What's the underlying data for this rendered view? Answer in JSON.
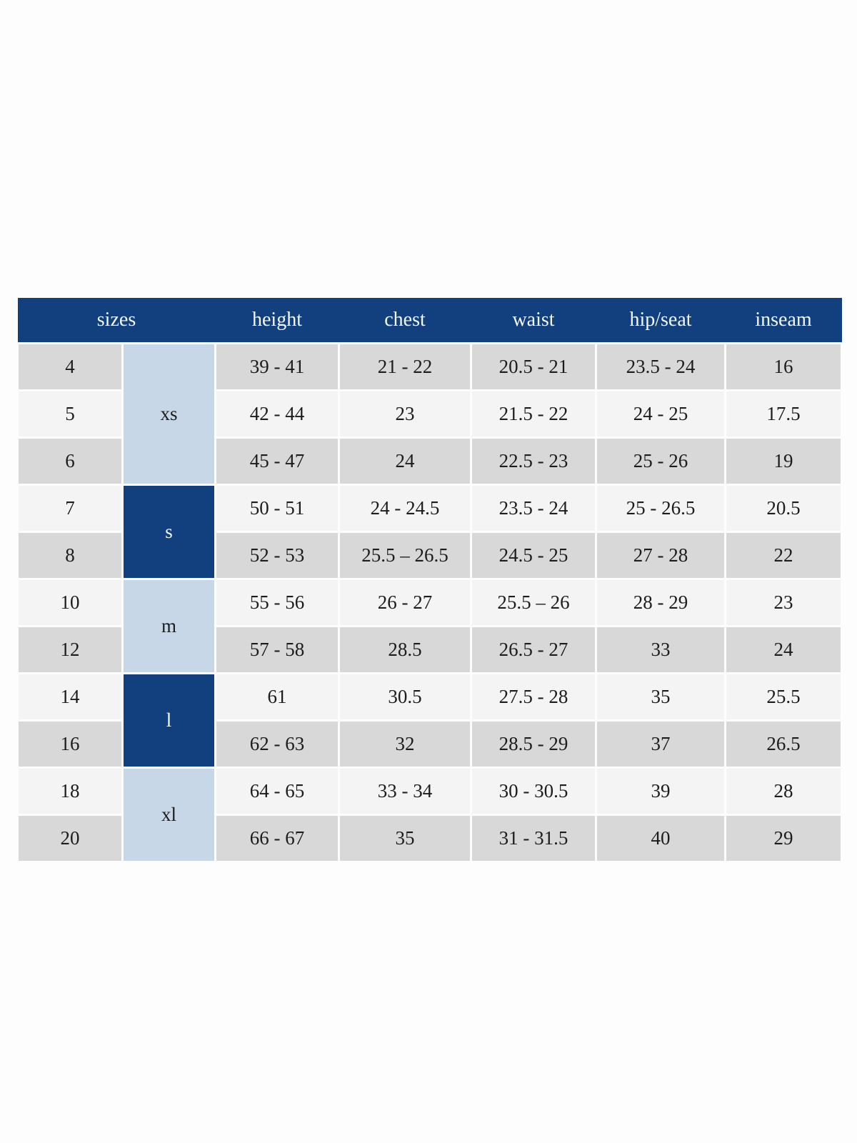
{
  "chart_data": {
    "type": "table",
    "columns": [
      "sizes",
      "height",
      "chest",
      "waist",
      "hip/seat",
      "inseam"
    ],
    "size_groups": [
      {
        "label": "xs",
        "span": 3,
        "tone": "light"
      },
      {
        "label": "s",
        "span": 2,
        "tone": "dark"
      },
      {
        "label": "m",
        "span": 2,
        "tone": "light"
      },
      {
        "label": "l",
        "span": 2,
        "tone": "dark"
      },
      {
        "label": "xl",
        "span": 2,
        "tone": "light"
      }
    ],
    "rows": [
      {
        "size": "4",
        "group": "xs",
        "height": "39 - 41",
        "chest": "21 - 22",
        "waist": "20.5 - 21",
        "hip_seat": "23.5 - 24",
        "inseam": "16"
      },
      {
        "size": "5",
        "group": "xs",
        "height": "42 - 44",
        "chest": "23",
        "waist": "21.5 - 22",
        "hip_seat": "24 - 25",
        "inseam": "17.5"
      },
      {
        "size": "6",
        "group": "xs",
        "height": "45 - 47",
        "chest": "24",
        "waist": "22.5 - 23",
        "hip_seat": "25 - 26",
        "inseam": "19"
      },
      {
        "size": "7",
        "group": "s",
        "height": "50 - 51",
        "chest": "24 - 24.5",
        "waist": "23.5 - 24",
        "hip_seat": "25 - 26.5",
        "inseam": "20.5"
      },
      {
        "size": "8",
        "group": "s",
        "height": "52 - 53",
        "chest": "25.5 – 26.5",
        "waist": "24.5 - 25",
        "hip_seat": "27 - 28",
        "inseam": "22"
      },
      {
        "size": "10",
        "group": "m",
        "height": "55 - 56",
        "chest": "26 - 27",
        "waist": "25.5 – 26",
        "hip_seat": "28 - 29",
        "inseam": "23"
      },
      {
        "size": "12",
        "group": "m",
        "height": "57 - 58",
        "chest": "28.5",
        "waist": "26.5 - 27",
        "hip_seat": "33",
        "inseam": "24"
      },
      {
        "size": "14",
        "group": "l",
        "height": "61",
        "chest": "30.5",
        "waist": "27.5 - 28",
        "hip_seat": "35",
        "inseam": "25.5"
      },
      {
        "size": "16",
        "group": "l",
        "height": "62 - 63",
        "chest": "32",
        "waist": "28.5 - 29",
        "hip_seat": "37",
        "inseam": "26.5"
      },
      {
        "size": "18",
        "group": "xl",
        "height": "64 - 65",
        "chest": "33 - 34",
        "waist": "30 - 30.5",
        "hip_seat": "39",
        "inseam": "28"
      },
      {
        "size": "20",
        "group": "xl",
        "height": "66 - 67",
        "chest": "35",
        "waist": "31 - 31.5",
        "hip_seat": "40",
        "inseam": "29"
      }
    ],
    "layout_hints": {
      "row_alternation": [
        "gray",
        "light"
      ],
      "first_data_row_tone": "gray",
      "grid": "white gutters between cells",
      "header_position": "top"
    },
    "colors": {
      "header_bg": "#12407e",
      "header_text": "#f5f8fb",
      "group_dark_bg": "#12407e",
      "group_dark_text": "#f5f8fb",
      "group_light_bg": "#c8d7e8",
      "row_gray": "#d8d8d8",
      "row_light": "#f4f4f4",
      "cell_text": "#1c1c1c",
      "page_bg": "#fdfdfd"
    }
  }
}
